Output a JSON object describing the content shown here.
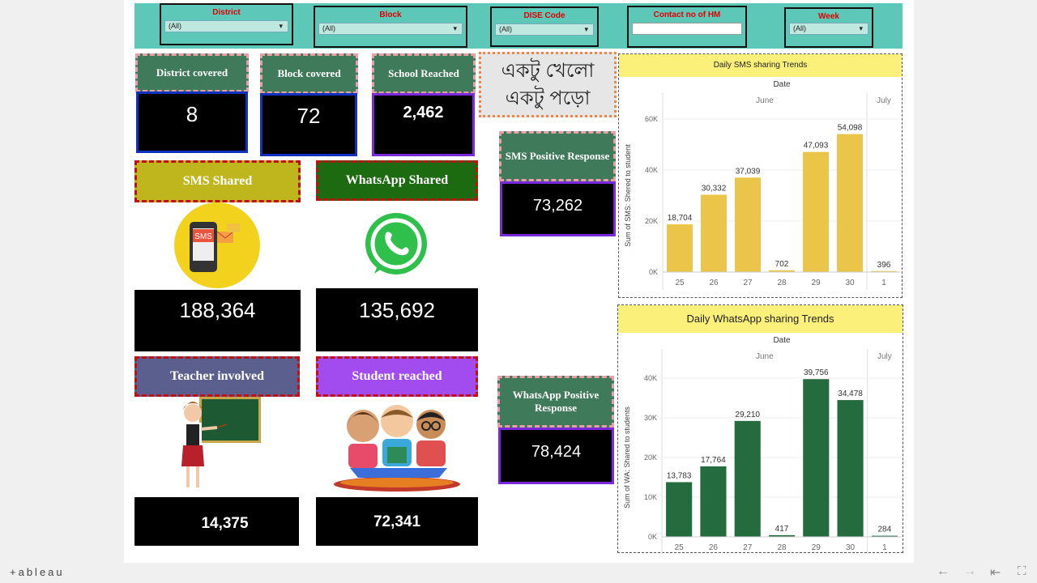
{
  "filters": [
    {
      "label": "District",
      "value": "(All)"
    },
    {
      "label": "Block",
      "value": "(All)"
    },
    {
      "label": "DISE Code",
      "value": "(All)"
    },
    {
      "label": "Contact no of HM",
      "value": ""
    },
    {
      "label": "Week",
      "value": "(All)"
    }
  ],
  "kpis": {
    "district": {
      "label": "District covered",
      "value": "8"
    },
    "block": {
      "label": "Block covered",
      "value": "72"
    },
    "school": {
      "label": "School Reached",
      "value": "2,462"
    },
    "sms_positive": {
      "label": "SMS Positive Response",
      "value": "73,262"
    },
    "wa_positive": {
      "label": "WhatsApp Positive Response",
      "value": "78,424"
    }
  },
  "bengali_text": "একটু খেলো একটু পড়ো",
  "cards": {
    "sms": {
      "label": "SMS Shared",
      "value": "188,364",
      "icon_text": "SMS"
    },
    "whatsapp": {
      "label": "WhatsApp Shared",
      "value": "135,692"
    },
    "teacher": {
      "label": "Teacher involved",
      "value": "14,375"
    },
    "student": {
      "label": "Student reached",
      "value": "72,341"
    }
  },
  "chart_data": [
    {
      "type": "bar",
      "title": "Daily SMS sharing Trends",
      "xlabel": "Date",
      "groups": [
        "June",
        "July"
      ],
      "categories": [
        "25",
        "26",
        "27",
        "28",
        "29",
        "30",
        "1"
      ],
      "values": [
        18704,
        30332,
        37039,
        702,
        47093,
        54098,
        396
      ],
      "labels": [
        "18,704",
        "30,332",
        "37,039",
        "702",
        "47,093",
        "54,098",
        "396"
      ],
      "ylabel": "Sum of SMS: Shered to student",
      "yticks": [
        "0K",
        "20K",
        "40K",
        "60K"
      ],
      "ylim": [
        0,
        60000
      ],
      "color": "#eac54a"
    },
    {
      "type": "bar",
      "title": "Daily WhatsApp sharing Trends",
      "xlabel": "Date",
      "groups": [
        "June",
        "July"
      ],
      "categories": [
        "25",
        "26",
        "27",
        "28",
        "29",
        "30",
        "1"
      ],
      "values": [
        13783,
        17764,
        29210,
        417,
        39756,
        34478,
        284
      ],
      "labels": [
        "13,783",
        "17,764",
        "29,210",
        "417",
        "39,756",
        "34,478",
        "284"
      ],
      "ylabel": "Sum of WA: Shared to students",
      "yticks": [
        "0K",
        "10K",
        "20K",
        "30K",
        "40K"
      ],
      "ylim": [
        0,
        40000
      ],
      "color": "#246b3e"
    }
  ],
  "footer": {
    "brand": "+ableau",
    "undo_icon": "undo-icon",
    "redo_icon": "redo-icon",
    "revert_icon": "revert-icon",
    "fullscreen_icon": "fullscreen-icon"
  }
}
